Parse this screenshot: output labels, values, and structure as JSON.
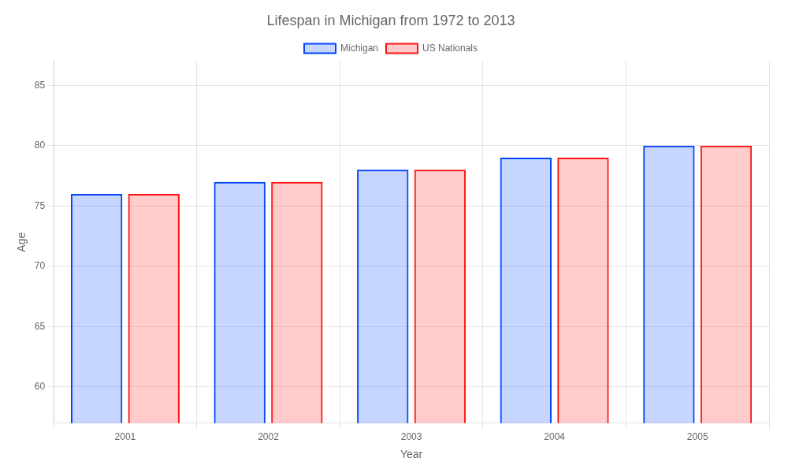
{
  "chart_data": {
    "type": "bar",
    "title": "Lifespan in Michigan from 1972 to 2013",
    "xlabel": "Year",
    "ylabel": "Age",
    "categories": [
      "2001",
      "2002",
      "2003",
      "2004",
      "2005"
    ],
    "series": [
      {
        "name": "Michigan",
        "color": "#0044ff",
        "values": [
          76,
          77,
          78,
          79,
          80
        ]
      },
      {
        "name": "US Nationals",
        "color": "#ff1111",
        "values": [
          76,
          77,
          78,
          79,
          80
        ]
      }
    ],
    "ylim": [
      57,
      87
    ],
    "yticks": [
      60,
      65,
      70,
      75,
      80,
      85
    ],
    "grid": true,
    "legend": "top"
  }
}
